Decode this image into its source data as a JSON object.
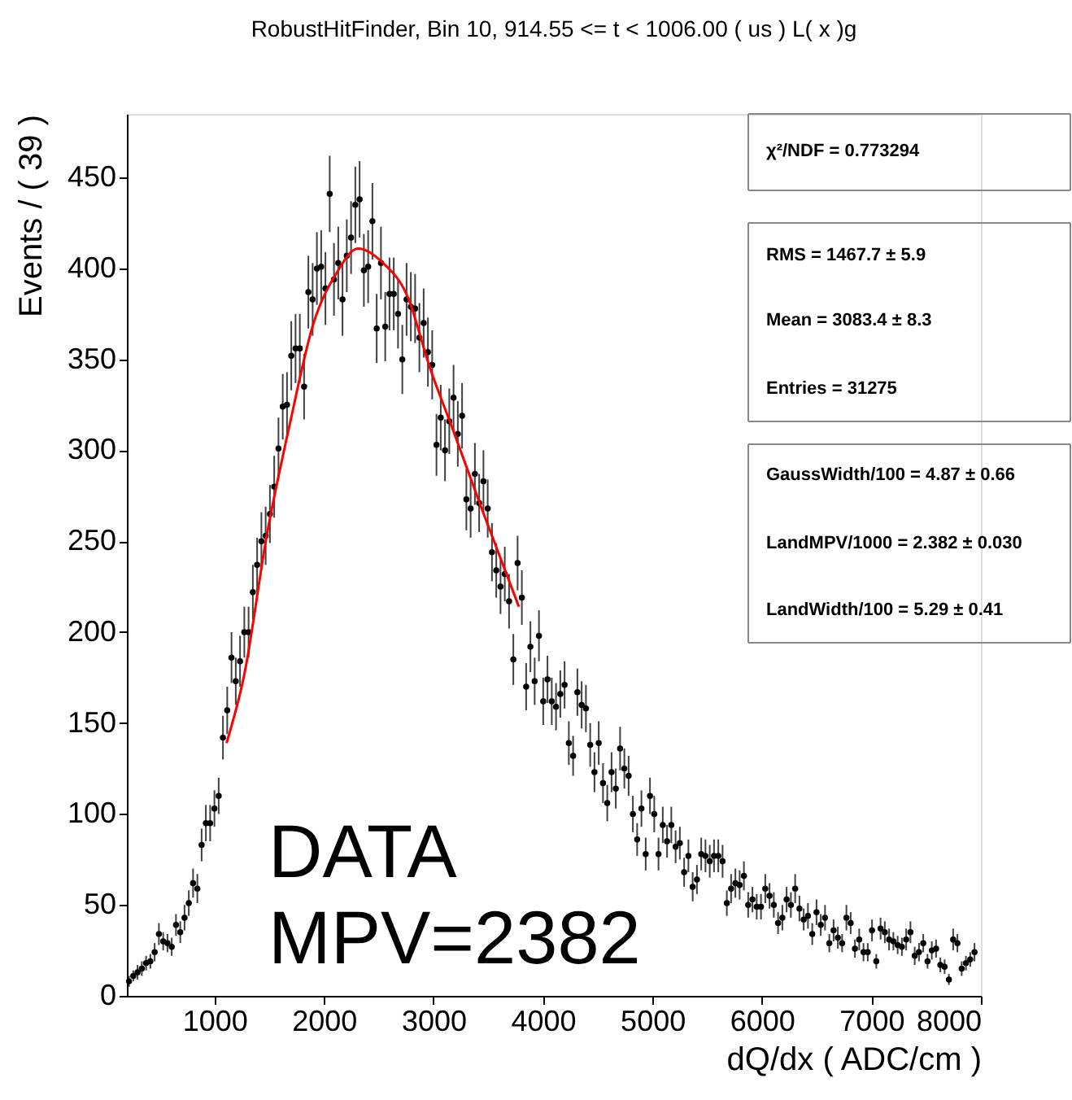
{
  "chart_data": {
    "type": "scatter",
    "title": "RobustHitFinder, Bin 10, 914.55 <= t < 1006.00 ( us ) L( x )g",
    "xlabel": "dQ/dx ( ADC/cm )",
    "ylabel": "Events / ( 39 )",
    "xlim": [
      200,
      8000
    ],
    "xticks": [
      1000,
      2000,
      3000,
      4000,
      5000,
      6000,
      7000,
      8000
    ],
    "ylim": [
      0,
      485
    ],
    "yticks": [
      0,
      50,
      100,
      150,
      200,
      250,
      300,
      350,
      400,
      450
    ],
    "annotations": [
      "χ²/NDF = 0.773294",
      "RMS =  1467.7 ± 5.9",
      "Mean =  3083.4 ± 8.3",
      "Entries =  31275",
      "GaussWidth/100 =  4.87 ± 0.66",
      "LandMPV/1000 =  2.382 ± 0.030",
      "LandWidth/100 =  5.29 ± 0.41",
      "DATA",
      "MPV=2382"
    ],
    "series": [
      {
        "marker": "circle",
        "color": "#000000",
        "x": [
          219.5,
          258.5,
          297.5,
          336.5,
          375.5,
          414.5,
          453.5,
          492.5,
          531.5,
          570.5,
          609.5,
          648.5,
          687.5,
          726.5,
          765.5,
          804.5,
          843.5,
          882.5,
          921.5,
          960.5,
          999.5,
          1038.5,
          1077.5,
          1116.5,
          1155.5,
          1194.5,
          1233.5,
          1272.5,
          1311.5,
          1350.5,
          1389.5,
          1428.5,
          1467.5,
          1506.5,
          1545.5,
          1584.5,
          1623.5,
          1662.5,
          1701.5,
          1740.5,
          1779.5,
          1818.5,
          1857.5,
          1896.5,
          1935.5,
          1974.5,
          2013.5,
          2052.5,
          2091.5,
          2130.5,
          2169.5,
          2208.5,
          2247.5,
          2286.5,
          2325.5,
          2364.5,
          2403.5,
          2442.5,
          2481.5,
          2520.5,
          2559.5,
          2598.5,
          2637.5,
          2676.5,
          2715.5,
          2754.5,
          2793.5,
          2832.5,
          2871.5,
          2910.5,
          2949.5,
          2988.5,
          3027.5,
          3066.5,
          3105.5,
          3144.5,
          3183.5,
          3222.5,
          3261.5,
          3300.5,
          3339.5,
          3378.5,
          3417.5,
          3456.5,
          3495.5,
          3534.5,
          3573.5,
          3612.5,
          3651.5,
          3690.5,
          3729.5,
          3768.5,
          3807.5,
          3846.5,
          3885.5,
          3924.5,
          3963.5,
          4002.5,
          4041.5,
          4080.5,
          4119.5,
          4158.5,
          4197.5,
          4236.5,
          4275.5,
          4314.5,
          4353.5,
          4392.5,
          4431.5,
          4470.5,
          4509.5,
          4548.5,
          4587.5,
          4626.5,
          4665.5,
          4704.5,
          4743.5,
          4782.5,
          4821.5,
          4860.5,
          4899.5,
          4938.5,
          4977.5,
          5016.5,
          5055.5,
          5094.5,
          5133.5,
          5172.5,
          5211.5,
          5250.5,
          5289.5,
          5328.5,
          5367.5,
          5406.5,
          5445.5,
          5484.5,
          5523.5,
          5562.5,
          5601.5,
          5640.5,
          5679.5,
          5718.5,
          5757.5,
          5796.5,
          5835.5,
          5874.5,
          5913.5,
          5952.5,
          5991.5,
          6030.5,
          6069.5,
          6108.5,
          6147.5,
          6186.5,
          6225.5,
          6264.5,
          6303.5,
          6342.5,
          6381.5,
          6420.5,
          6459.5,
          6498.5,
          6537.5,
          6576.5,
          6615.5,
          6654.5,
          6693.5,
          6732.5,
          6771.5,
          6810.5,
          6849.5,
          6888.5,
          6927.5,
          6966.5,
          7005.5,
          7044.5,
          7083.5,
          7122.5,
          7161.5,
          7200.5,
          7239.5,
          7278.5,
          7317.5,
          7356.5,
          7395.5,
          7434.5,
          7473.5,
          7512.5,
          7551.5,
          7590.5,
          7629.5,
          7668.5,
          7707.5,
          7746.5,
          7785.5,
          7824.5,
          7863.5,
          7902.5,
          7941.5
        ],
        "values": [
          8,
          11,
          13,
          15,
          18,
          19,
          24,
          34,
          30,
          29,
          27,
          39,
          35,
          43,
          51,
          62,
          59,
          83,
          95,
          95,
          103,
          110,
          142,
          157,
          186,
          173,
          184,
          200,
          200,
          222,
          237,
          250,
          253,
          265,
          280,
          301,
          324,
          325,
          352,
          356,
          356,
          335,
          387,
          383,
          400,
          401,
          389,
          441,
          394,
          403,
          383,
          407,
          417,
          435,
          438,
          399,
          401,
          426,
          367,
          403,
          368,
          386,
          386,
          375,
          350,
          383,
          379,
          378,
          362,
          370,
          354,
          347,
          303,
          318,
          300,
          316,
          329,
          309,
          319,
          273,
          268,
          287,
          271,
          283,
          268,
          244,
          234,
          225,
          232,
          217,
          185,
          238,
          219,
          170,
          192,
          173,
          198,
          162,
          174,
          162,
          159,
          166,
          171,
          139,
          132,
          167,
          160,
          158,
          138,
          123,
          139,
          117,
          106,
          123,
          114,
          136,
          125,
          121,
          100,
          86,
          103,
          78,
          110,
          100,
          78,
          94,
          85,
          94,
          82,
          84,
          68,
          77,
          60,
          64,
          78,
          77,
          74,
          77,
          77,
          74,
          51,
          59,
          62,
          61,
          66,
          50,
          53,
          49,
          49,
          59,
          55,
          50,
          40,
          43,
          53,
          50,
          59,
          48,
          42,
          44,
          34,
          46,
          39,
          43,
          29,
          36,
          32,
          29,
          43,
          40,
          26,
          31,
          24,
          24,
          36,
          19,
          37,
          35,
          31,
          30,
          28,
          27,
          31,
          35,
          22,
          24,
          29,
          19,
          25,
          26,
          17,
          16,
          9,
          31,
          29,
          15,
          18,
          20,
          24
        ],
        "errors": [
          3,
          3,
          4,
          4,
          4,
          4,
          5,
          6,
          5,
          5,
          5,
          6,
          6,
          7,
          7,
          8,
          8,
          9,
          10,
          10,
          10,
          10,
          12,
          13,
          14,
          13,
          14,
          14,
          14,
          15,
          15,
          16,
          16,
          16,
          17,
          17,
          18,
          18,
          19,
          19,
          19,
          18,
          20,
          20,
          20,
          20,
          20,
          21,
          20,
          20,
          20,
          20,
          20,
          21,
          21,
          20,
          20,
          21,
          19,
          20,
          19,
          20,
          20,
          19,
          19,
          20,
          19,
          19,
          19,
          19,
          19,
          19,
          17,
          18,
          17,
          18,
          18,
          18,
          18,
          17,
          16,
          17,
          16,
          17,
          16,
          16,
          15,
          15,
          15,
          15,
          14,
          15,
          15,
          13,
          14,
          13,
          14,
          13,
          13,
          13,
          13,
          13,
          13,
          12,
          11,
          13,
          13,
          13,
          12,
          11,
          12,
          11,
          10,
          11,
          11,
          12,
          11,
          11,
          10,
          9,
          10,
          9,
          10,
          10,
          9,
          10,
          9,
          10,
          9,
          9,
          8,
          9,
          8,
          8,
          9,
          9,
          9,
          9,
          9,
          9,
          7,
          8,
          8,
          8,
          8,
          7,
          7,
          7,
          7,
          8,
          7,
          7,
          6,
          7,
          7,
          7,
          8,
          7,
          6,
          7,
          6,
          7,
          6,
          7,
          5,
          6,
          6,
          5,
          7,
          6,
          5,
          6,
          5,
          5,
          6,
          4,
          6,
          6,
          6,
          5,
          5,
          5,
          6,
          6,
          5,
          5,
          5,
          4,
          5,
          5,
          4,
          4,
          3,
          6,
          5,
          4,
          4,
          4,
          5
        ]
      },
      {
        "type": "line",
        "line_style": "solid",
        "color": "#ff0000",
        "x": [
          1110,
          1270,
          1480,
          1690,
          1900,
          2120,
          2310,
          2540,
          2760,
          2970,
          3180,
          3440,
          3780
        ],
        "values": [
          139,
          176,
          254,
          315,
          369,
          398,
          411,
          403,
          385,
          345,
          311,
          268,
          214
        ]
      }
    ]
  }
}
